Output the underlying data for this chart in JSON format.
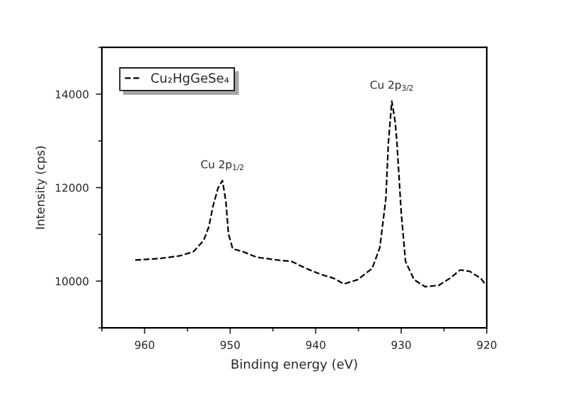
{
  "chart_data": {
    "type": "line",
    "xlabel": "Binding energy (eV)",
    "ylabel": "Intensity (cps)",
    "x": [
      961.1,
      958.4,
      955.9,
      954.3,
      953.1,
      952.5,
      952.0,
      951.4,
      950.9,
      950.5,
      950.2,
      949.7,
      948.5,
      946.9,
      944.4,
      942.8,
      941.1,
      939.5,
      937.9,
      936.7,
      935.1,
      933.4,
      932.5,
      931.8,
      931.5,
      931.1,
      930.7,
      930.5,
      930.0,
      929.5,
      928.5,
      927.2,
      925.6,
      924.3,
      923.1,
      922.0,
      920.7,
      920.2
    ],
    "series": [
      {
        "name": "Cu₂HgGeSe₄",
        "color": "#000000",
        "values": [
          10450,
          10480,
          10540,
          10630,
          10870,
          11160,
          11610,
          12000,
          12150,
          11700,
          11010,
          10690,
          10630,
          10510,
          10450,
          10420,
          10270,
          10150,
          10060,
          9940,
          10030,
          10270,
          10720,
          11760,
          12960,
          13850,
          13400,
          12960,
          11460,
          10420,
          10030,
          9880,
          9910,
          10060,
          10240,
          10210,
          10060,
          9940
        ]
      }
    ],
    "xlim": [
      965,
      920
    ],
    "xticks": [
      960,
      950,
      940,
      930,
      920
    ],
    "ylim": [
      9000,
      15000
    ],
    "yticks": [
      10000,
      12000,
      14000
    ],
    "annotations": [
      {
        "text": "Cu 2p$_{1/2}$",
        "x": 950.9,
        "y": 12150
      },
      {
        "text": "Cu 2p$_{3/2}$",
        "x": 931.1,
        "y": 13850
      }
    ],
    "legend": "top left",
    "grid": false,
    "line_style": "dashed"
  }
}
